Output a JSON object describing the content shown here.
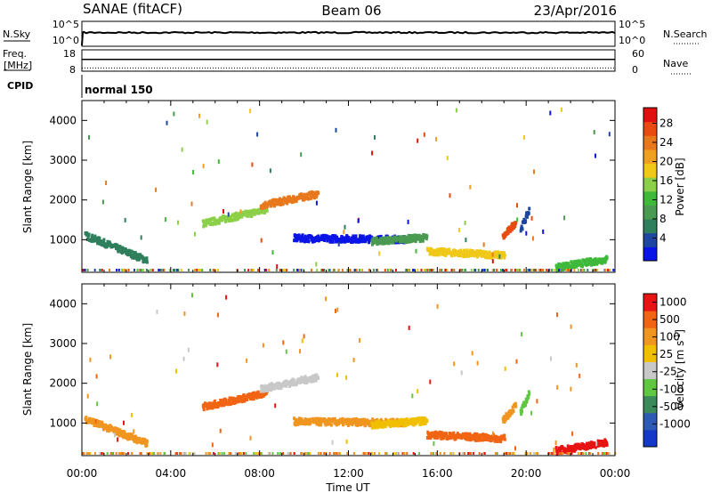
{
  "header": {
    "title": "SANAE (fitACF)",
    "beam": "Beam 06",
    "date": "23/Apr/2016"
  },
  "top_panels": {
    "nsky": {
      "label": "N.Sky",
      "left_ticks": [
        "10^5",
        "10^0"
      ],
      "right_label": "N.Search",
      "right_ticks": [
        "10^5",
        "10^0"
      ],
      "trace_level_fraction": 0.45
    },
    "freq": {
      "label_line1": "Freq.",
      "label_line2": "[MHz]",
      "left_ticks": [
        "18",
        "8"
      ],
      "right_label": "Nave",
      "right_ticks": [
        "60",
        "0"
      ],
      "freq_level_fraction": 0.45,
      "nave_level_fraction": 0.85
    },
    "cpid": {
      "label": "CPID",
      "value": "normal 150"
    }
  },
  "chart_data": [
    {
      "type": "heatmap",
      "ylabel": "Slant Range [km]",
      "ylim": [
        180,
        4500
      ],
      "y_ticks": [
        1000,
        2000,
        3000,
        4000
      ],
      "x_range_hours": [
        0,
        24
      ],
      "colorbar": {
        "label": "Power [dB]",
        "range": [
          0,
          30
        ],
        "ticks": [
          "4",
          "8",
          "12",
          "16",
          "20",
          "24",
          "28"
        ],
        "colors": [
          "#0a14e6",
          "#1e46a0",
          "#2f7f5c",
          "#4a9a52",
          "#3fb93a",
          "#8cd04a",
          "#f0c818",
          "#f0a020",
          "#e8781c",
          "#e84a10",
          "#e01010"
        ]
      },
      "features": [
        {
          "t0": 0.1,
          "t1": 2.9,
          "r0": 1150,
          "r1": 520
        },
        {
          "t0": 5.4,
          "t1": 8.3,
          "r0": 1450,
          "r1": 1800
        },
        {
          "t0": 8.0,
          "t1": 10.6,
          "r0": 1900,
          "r1": 2200
        },
        {
          "t0": 9.5,
          "t1": 14.5,
          "r0": 1080,
          "r1": 1050
        },
        {
          "t0": 13.0,
          "t1": 15.5,
          "r0": 1000,
          "r1": 1100
        },
        {
          "t0": 15.5,
          "t1": 19.0,
          "r0": 750,
          "r1": 650
        },
        {
          "t0": 18.9,
          "t1": 19.5,
          "r0": 1100,
          "r1": 1500
        },
        {
          "t0": 19.7,
          "t1": 20.1,
          "r0": 1300,
          "r1": 1800
        },
        {
          "t0": 21.3,
          "t1": 23.6,
          "r0": 350,
          "r1": 550
        }
      ]
    },
    {
      "type": "heatmap",
      "ylabel": "Slant Range [km]",
      "xlabel": "Time UT",
      "ylim": [
        180,
        4500
      ],
      "y_ticks": [
        1000,
        2000,
        3000,
        4000
      ],
      "x_range_hours": [
        0,
        24
      ],
      "x_tick_labels": [
        "00:00",
        "04:00",
        "08:00",
        "12:00",
        "16:00",
        "20:00",
        "00:00"
      ],
      "colorbar": {
        "label": "Velocity [m s",
        "label_sup": "-1",
        "label_close": "]",
        "ticks": [
          "1000",
          "500",
          "100",
          "25",
          "-25",
          "-100",
          "-500",
          "-1000"
        ],
        "colors": [
          "#1438c8",
          "#2d5ab4",
          "#3c8a5a",
          "#60c840",
          "#c8c8c8",
          "#f0c000",
          "#f09620",
          "#f06414",
          "#e81414"
        ]
      },
      "features": [
        {
          "t0": 0.1,
          "t1": 2.9,
          "r0": 1150,
          "r1": 520
        },
        {
          "t0": 5.4,
          "t1": 8.3,
          "r0": 1450,
          "r1": 1800
        },
        {
          "t0": 8.0,
          "t1": 10.6,
          "r0": 1900,
          "r1": 2200
        },
        {
          "t0": 9.5,
          "t1": 14.5,
          "r0": 1080,
          "r1": 1050
        },
        {
          "t0": 13.0,
          "t1": 15.5,
          "r0": 1000,
          "r1": 1100
        },
        {
          "t0": 15.5,
          "t1": 19.0,
          "r0": 750,
          "r1": 650
        },
        {
          "t0": 18.9,
          "t1": 19.5,
          "r0": 1100,
          "r1": 1500
        },
        {
          "t0": 19.7,
          "t1": 20.1,
          "r0": 1300,
          "r1": 1800
        },
        {
          "t0": 21.3,
          "t1": 23.6,
          "r0": 350,
          "r1": 550
        }
      ]
    }
  ]
}
